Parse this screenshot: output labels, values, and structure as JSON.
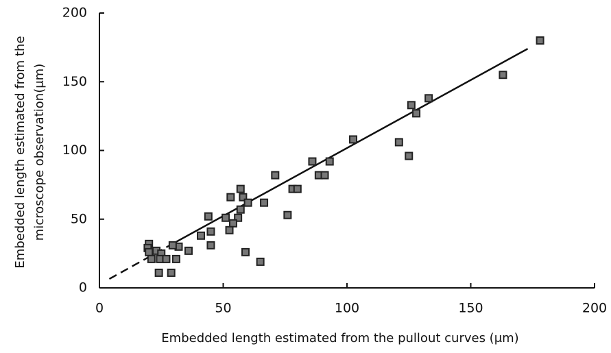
{
  "chart_data": {
    "type": "scatter",
    "xlabel": "Embedded length estimated from the pullout curves (μm)",
    "ylabel": [
      "Embedded length estimated from the",
      "microscope observation(μm)"
    ],
    "xlim": [
      0,
      200
    ],
    "ylim": [
      0,
      200
    ],
    "xticks": [
      0,
      50,
      100,
      150,
      200
    ],
    "yticks": [
      0,
      50,
      100,
      150,
      200
    ],
    "color": "#222222",
    "x": [
      178,
      163,
      133,
      126,
      128,
      102.5,
      121,
      125,
      93,
      86,
      88.6,
      91,
      71,
      78,
      80,
      57,
      58,
      53,
      60,
      66.5,
      44,
      76,
      51,
      56,
      57,
      54,
      52.5,
      45,
      41,
      45,
      59,
      65,
      36,
      32,
      29.6,
      20,
      19.5,
      20,
      23,
      25,
      21,
      24.5,
      27,
      31,
      24,
      29
    ],
    "values": [
      180,
      155,
      138,
      133,
      127,
      108,
      106,
      96,
      92,
      92,
      82,
      82,
      82,
      72,
      72,
      72,
      66,
      66,
      62,
      62,
      52,
      53,
      51,
      51,
      57,
      47,
      42,
      41,
      38,
      31,
      26,
      19,
      27,
      30,
      31,
      32,
      29,
      26,
      27,
      25,
      21,
      21,
      21,
      21,
      11,
      11
    ],
    "lines": [
      {
        "style": "dashed",
        "x": [
          4,
          30
        ],
        "values": [
          6.5,
          32.5
        ]
      },
      {
        "style": "solid",
        "x": [
          30,
          173
        ],
        "values": [
          32.5,
          174
        ]
      }
    ]
  }
}
